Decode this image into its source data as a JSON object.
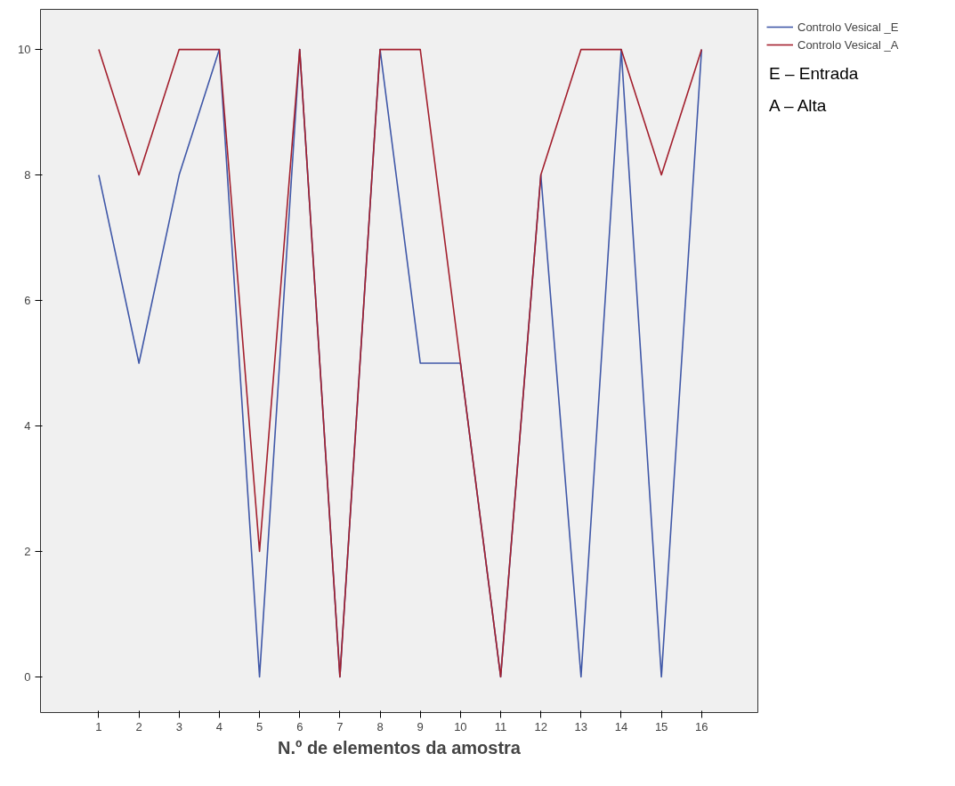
{
  "chart_data": {
    "type": "line",
    "xlabel": "N.º de elementos da amostra",
    "x": [
      1,
      2,
      3,
      4,
      5,
      6,
      7,
      8,
      9,
      10,
      11,
      12,
      13,
      14,
      15,
      16
    ],
    "series": [
      {
        "name": "Controlo Vesical _E",
        "color": "#4058a8",
        "values": [
          8,
          5,
          8,
          10,
          0,
          10,
          0,
          10,
          5,
          5,
          0,
          8,
          0,
          10,
          0,
          10
        ]
      },
      {
        "name": "Controlo Vesical _A",
        "color": "#a3202e",
        "values": [
          10,
          8,
          10,
          10,
          2,
          10,
          0,
          10,
          10,
          5,
          0,
          8,
          10,
          10,
          8,
          10
        ]
      }
    ],
    "xlim": [
      -0.45,
      17.4
    ],
    "ylim": [
      -0.57,
      10.64
    ],
    "xticks": [
      1,
      2,
      3,
      4,
      5,
      6,
      7,
      8,
      9,
      10,
      11,
      12,
      13,
      14,
      15,
      16
    ],
    "yticks": [
      0,
      2,
      4,
      6,
      8,
      10
    ],
    "grid": false,
    "legend": "top right",
    "marker": "none",
    "line_style": "solid",
    "annotations": [
      "E – Entrada",
      "A – Alta"
    ]
  }
}
